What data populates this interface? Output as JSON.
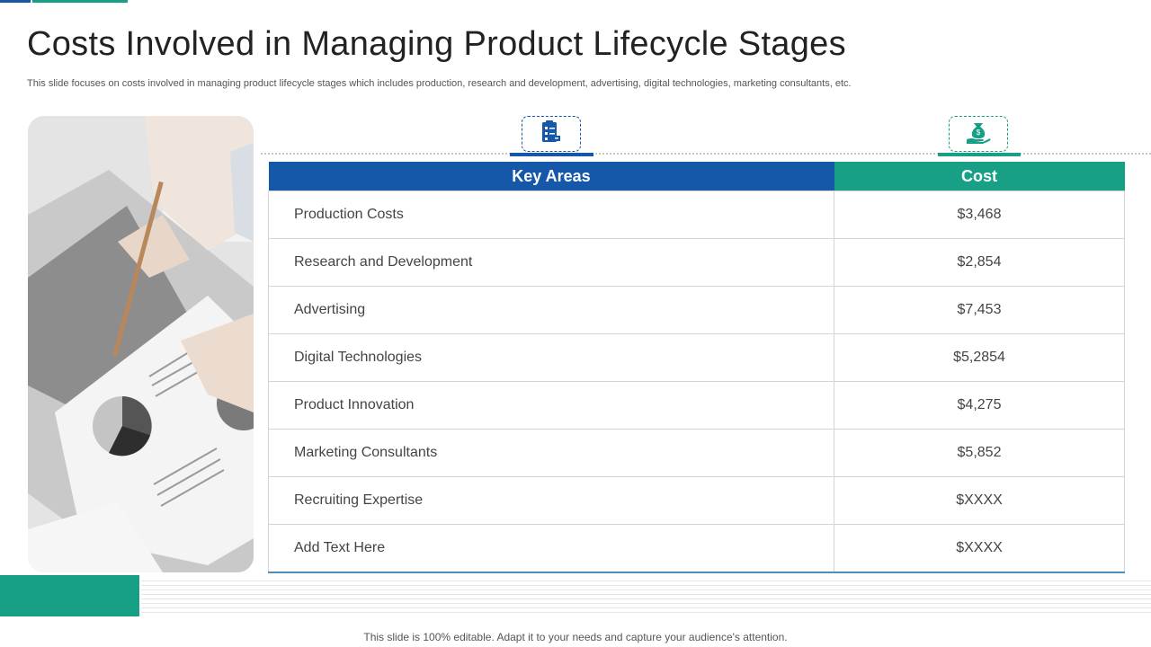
{
  "slide": {
    "title": "Costs Involved in Managing Product Lifecycle Stages",
    "subtitle": "This slide focuses on costs involved in managing product lifecycle stages which includes production, research and development, advertising, digital technologies, marketing consultants, etc.",
    "footer": "This slide is 100% editable. Adapt it to your needs and capture your audience's attention."
  },
  "icons": {
    "key_areas": "clipboard-checklist-icon",
    "cost": "money-bag-hand-icon"
  },
  "colors": {
    "blue": "#1557A8",
    "green": "#17A086"
  },
  "table": {
    "headers": {
      "key_areas": "Key Areas",
      "cost": "Cost"
    },
    "rows": [
      {
        "area": "Production Costs",
        "cost": "$3,468"
      },
      {
        "area": "Research and Development",
        "cost": "$2,854"
      },
      {
        "area": "Advertising",
        "cost": "$7,453"
      },
      {
        "area": "Digital Technologies",
        "cost": "$5,2854"
      },
      {
        "area": "Product Innovation",
        "cost": "$4,275"
      },
      {
        "area": "Marketing Consultants",
        "cost": "$5,852"
      },
      {
        "area": "Recruiting Expertise",
        "cost": "$XXXX"
      },
      {
        "area": "Add Text Here",
        "cost": "$XXXX"
      }
    ]
  }
}
